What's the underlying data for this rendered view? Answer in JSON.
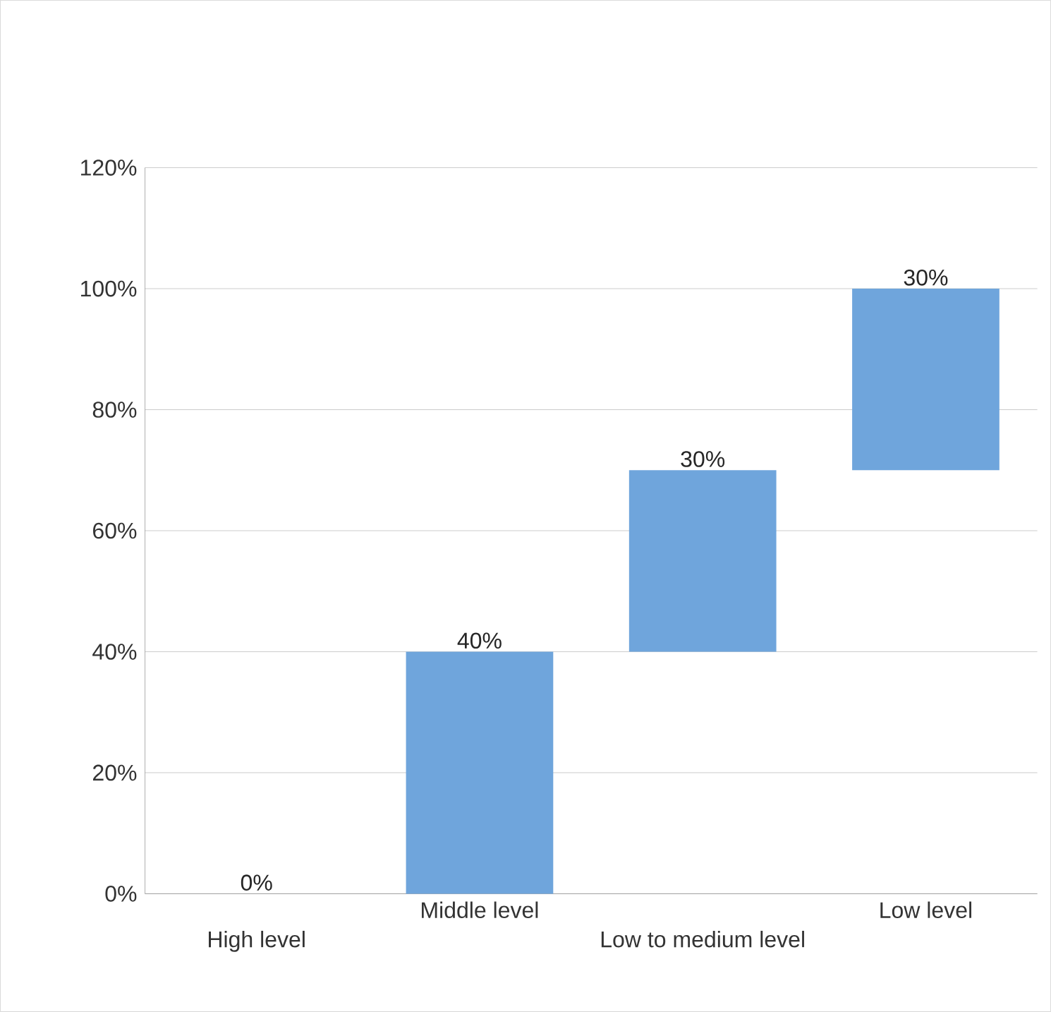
{
  "chart_data": {
    "type": "bar",
    "categories": [
      "High level",
      "Middle level",
      "Low to medium level",
      "Low level"
    ],
    "values": [
      0,
      40,
      30,
      30
    ],
    "base": [
      null,
      0,
      40,
      70
    ],
    "value_labels": [
      "0%",
      "40%",
      "30%",
      "30%"
    ],
    "color": "#6fa5dc",
    "ylim": [
      0,
      120
    ],
    "yticks": [
      {
        "value": 0,
        "label": "0%"
      },
      {
        "value": 20,
        "label": "20%"
      },
      {
        "value": 40,
        "label": "40%"
      },
      {
        "value": 60,
        "label": "60%"
      },
      {
        "value": 80,
        "label": "80%"
      },
      {
        "value": 100,
        "label": "100%"
      },
      {
        "value": 120,
        "label": "120%"
      }
    ],
    "grid": "y"
  }
}
